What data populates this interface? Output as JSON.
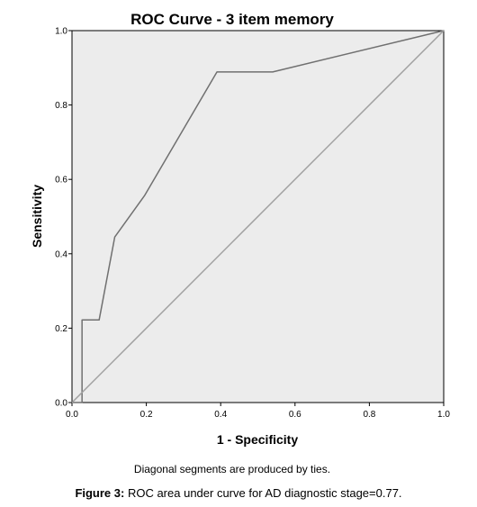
{
  "chart_data": {
    "type": "line",
    "title": "ROC Curve - 3 item memory",
    "xlabel": "1 - Specificity",
    "ylabel": "Sensitivity",
    "xlim": [
      0.0,
      1.0
    ],
    "ylim": [
      0.0,
      1.0
    ],
    "xticks": [
      "0.0",
      "0.2",
      "0.4",
      "0.6",
      "0.8",
      "1.0"
    ],
    "yticks": [
      "0.0",
      "0.2",
      "0.4",
      "0.6",
      "0.8",
      "1.0"
    ],
    "grid": false,
    "legend": "none",
    "plot_background": "#ececec",
    "series": [
      {
        "color": "#707070",
        "x": [
          0.0,
          0.027,
          0.027,
          0.073,
          0.115,
          0.195,
          0.39,
          0.54,
          1.0
        ],
        "y": [
          0.0,
          0.0,
          0.222,
          0.222,
          0.445,
          0.556,
          0.889,
          0.889,
          1.0
        ]
      },
      {
        "color": "#a0a0a0",
        "x": [
          0.0,
          1.0
        ],
        "y": [
          0.0,
          1.0
        ]
      }
    ],
    "footnote": "Diagonal segments are produced by ties."
  },
  "caption": {
    "label": "Figure 3:",
    "text": " ROC area under curve for AD diagnostic stage=0.77."
  }
}
